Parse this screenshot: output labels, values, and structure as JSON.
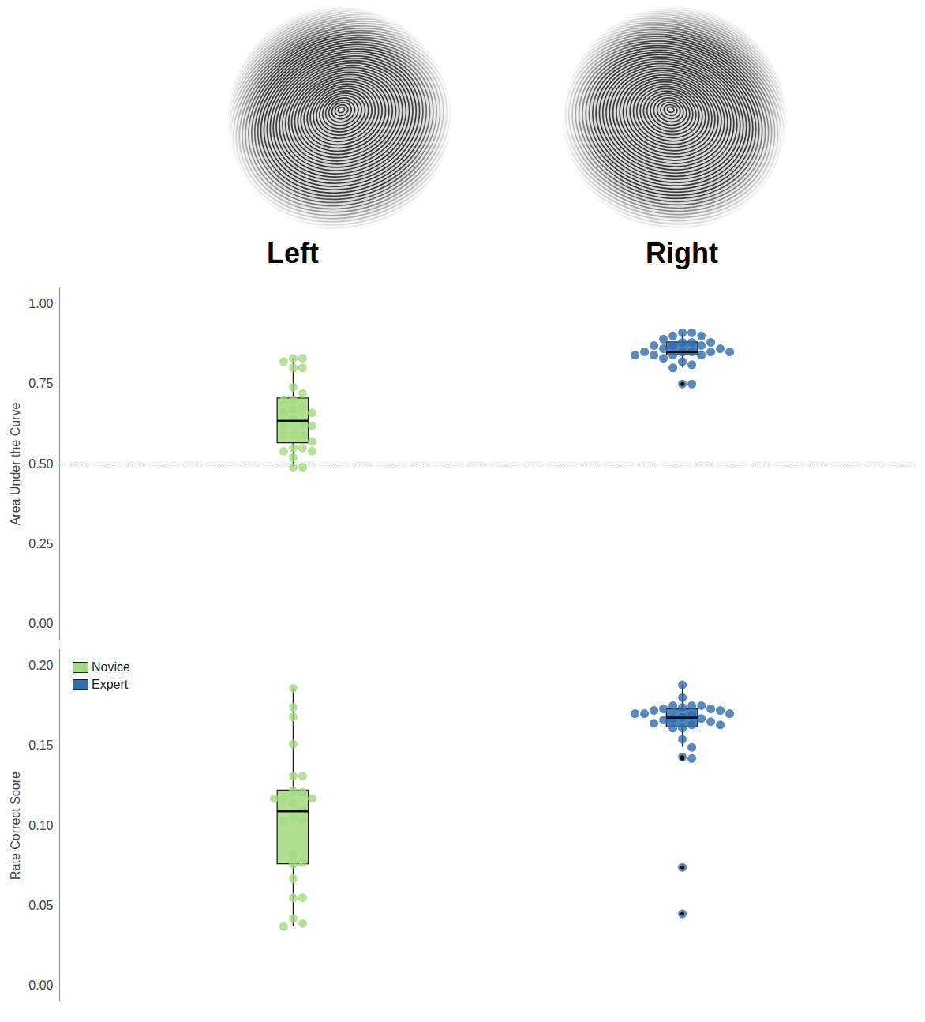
{
  "header": {
    "labels": [
      "Left",
      "Right"
    ]
  },
  "chart_data": [
    {
      "type": "box",
      "y_label": "Area Under the Curve",
      "ylim": [
        -0.05,
        1.05
      ],
      "yticks": [
        {
          "value": 0,
          "label": "0.00"
        },
        {
          "value": 0.25,
          "label": "0.25"
        },
        {
          "value": 0.5,
          "label": "0.50"
        },
        {
          "value": 0.75,
          "label": "0.75"
        },
        {
          "value": 1,
          "label": "1.00"
        }
      ],
      "hline": 0.5,
      "tick_labels": "y",
      "series": [
        {
          "name": "Novice",
          "color": "#a3d97f",
          "values": [
            0.83,
            0.83,
            0.82,
            0.8,
            0.8,
            0.74,
            0.72,
            0.7,
            0.7,
            0.68,
            0.67,
            0.66,
            0.66,
            0.64,
            0.63,
            0.62,
            0.62,
            0.59,
            0.59,
            0.59,
            0.57,
            0.55,
            0.55,
            0.54,
            0.54,
            0.52,
            0.49,
            0.49
          ]
        },
        {
          "name": "Expert",
          "color": "#2e6db0",
          "values": [
            0.91,
            0.91,
            0.9,
            0.9,
            0.89,
            0.88,
            0.88,
            0.88,
            0.87,
            0.87,
            0.87,
            0.86,
            0.86,
            0.85,
            0.85,
            0.85,
            0.85,
            0.85,
            0.84,
            0.84,
            0.84,
            0.84,
            0.83,
            0.82,
            0.81,
            0.8,
            0.75,
            0.75
          ]
        }
      ]
    },
    {
      "type": "box",
      "y_label": "Rate Correct Score",
      "ylim": [
        -0.01,
        0.21
      ],
      "yticks": [
        {
          "value": 0,
          "label": "0.00"
        },
        {
          "value": 0.05,
          "label": "0.05"
        },
        {
          "value": 0.1,
          "label": "0.10"
        },
        {
          "value": 0.15,
          "label": "0.15"
        },
        {
          "value": 0.2,
          "label": "0.20"
        }
      ],
      "tick_labels": "y",
      "legend": "top-left",
      "series": [
        {
          "name": "Novice",
          "color": "#a3d97f",
          "values": [
            0.186,
            0.174,
            0.168,
            0.151,
            0.131,
            0.131,
            0.122,
            0.121,
            0.118,
            0.117,
            0.117,
            0.114,
            0.109,
            0.105,
            0.103,
            0.103,
            0.082,
            0.077,
            0.076,
            0.067,
            0.055,
            0.055,
            0.042,
            0.039,
            0.037
          ]
        },
        {
          "name": "Expert",
          "color": "#2e6db0",
          "values": [
            0.188,
            0.18,
            0.175,
            0.175,
            0.175,
            0.174,
            0.173,
            0.173,
            0.172,
            0.172,
            0.17,
            0.17,
            0.17,
            0.169,
            0.168,
            0.167,
            0.167,
            0.166,
            0.165,
            0.164,
            0.163,
            0.163,
            0.161,
            0.161,
            0.154,
            0.149,
            0.143,
            0.142,
            0.074,
            0.045
          ]
        }
      ]
    }
  ]
}
